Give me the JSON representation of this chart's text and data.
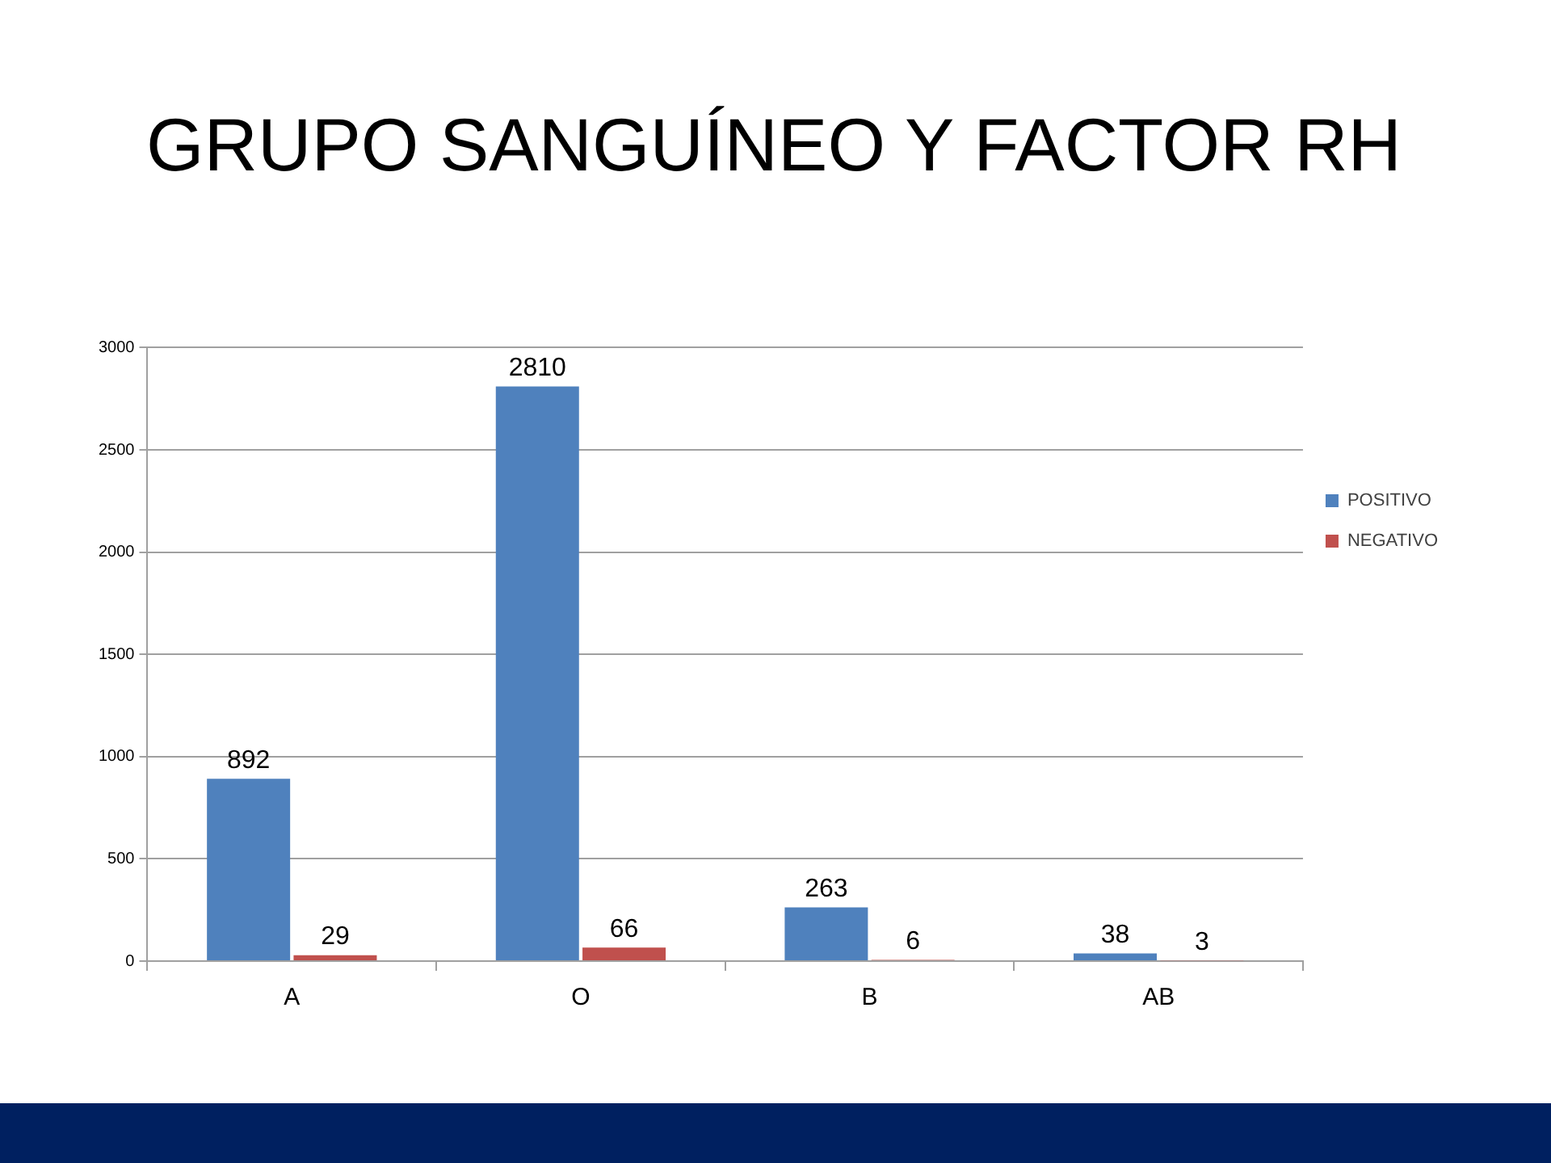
{
  "chart_data": {
    "type": "bar",
    "title": "GRUPO SANGUÍNEO Y FACTOR RH",
    "categories": [
      "A",
      "O",
      "B",
      "AB"
    ],
    "series": [
      {
        "name": "POSITIVO",
        "color": "#4f81bd",
        "values": [
          892,
          2810,
          263,
          38
        ]
      },
      {
        "name": "NEGATIVO",
        "color": "#c0504d",
        "values": [
          29,
          66,
          6,
          3
        ]
      }
    ],
    "ylim": [
      0,
      3000
    ],
    "yticks": [
      0,
      500,
      1000,
      1500,
      2000,
      2500,
      3000
    ],
    "grid": "y",
    "legend": "right",
    "data_labels": true
  }
}
